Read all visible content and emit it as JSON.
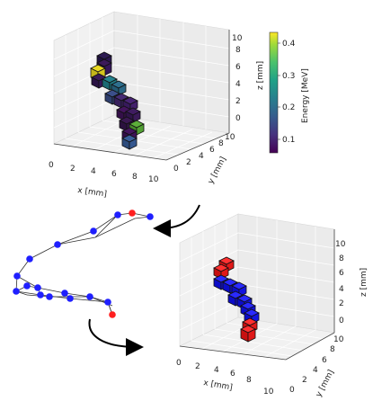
{
  "figure": {
    "top_plot": {
      "x_label": "x [mm]",
      "y_label": "y [mm]",
      "z_label": "z [mm]",
      "x_ticks": [
        "0",
        "2",
        "4",
        "6",
        "8",
        "10"
      ],
      "y_ticks": [
        "0",
        "2",
        "4",
        "6",
        "8",
        "10"
      ],
      "z_ticks": [
        "0",
        "2",
        "4",
        "6",
        "8",
        "10"
      ],
      "colorbar": {
        "label": "Energy [MeV]",
        "ticks": [
          "0.1",
          "0.2",
          "0.3",
          "0.4"
        ],
        "colormap": "viridis",
        "range": [
          0.04,
          0.44
        ]
      }
    },
    "graph": {
      "node_color_default": "#1f1fff",
      "node_color_endpoint": "#ff1f1f"
    },
    "bottom_plot": {
      "x_label": "x [mm]",
      "y_label": "y [mm]",
      "z_label": "z [mm]",
      "x_ticks": [
        "0",
        "2",
        "4",
        "6",
        "8",
        "10"
      ],
      "y_ticks": [
        "0",
        "2",
        "4",
        "6",
        "8",
        "10"
      ],
      "z_ticks": [
        "0",
        "2",
        "4",
        "6",
        "8",
        "10"
      ],
      "voxel_color_track": "#1a1aff",
      "voxel_color_endpoint": "#ff1a1a"
    }
  }
}
